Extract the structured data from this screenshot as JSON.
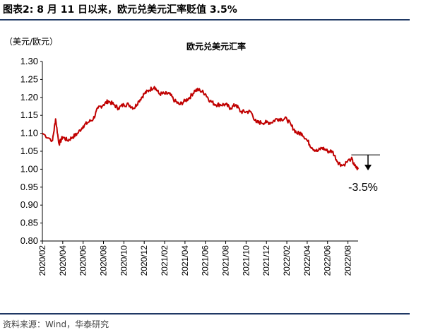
{
  "figure_title": "图表2:  8 月 11 日以来，欧元兑美元汇率贬值 3.5%",
  "source": "资料来源：Wind，华泰研究",
  "colors": {
    "series": "#c00000",
    "rule": "#1f3864",
    "axis": "#000000"
  },
  "chart_data": {
    "type": "line",
    "title": "欧元兑美元汇率",
    "unit_label": "（美元/欧元）",
    "ylim": [
      0.8,
      1.3
    ],
    "yticks": [
      "0.80",
      "0.85",
      "0.90",
      "0.95",
      "1.00",
      "1.05",
      "1.10",
      "1.15",
      "1.20",
      "1.25",
      "1.30"
    ],
    "xlim": [
      "2020-02",
      "2022-09"
    ],
    "xticks": [
      "2020/02",
      "2020/04",
      "2020/06",
      "2020/08",
      "2020/10",
      "2020/12",
      "2021/02",
      "2021/04",
      "2021/06",
      "2021/08",
      "2021/10",
      "2021/12",
      "2022/02",
      "2022/04",
      "2022/06",
      "2022/08"
    ],
    "series": [
      {
        "x": [
          "2020-02",
          "2020-03",
          "2020-03-10",
          "2020-03-20",
          "2020-04",
          "2020-04-15",
          "2020-05",
          "2020-05-15",
          "2020-06",
          "2020-06-15",
          "2020-07",
          "2020-07-15",
          "2020-08",
          "2020-08-15",
          "2020-09",
          "2020-09-15",
          "2020-10",
          "2020-10-15",
          "2020-11",
          "2020-11-15",
          "2020-12",
          "2020-12-15",
          "2021-01",
          "2021-01-15",
          "2021-02",
          "2021-02-15",
          "2021-03",
          "2021-03-15",
          "2021-04",
          "2021-04-15",
          "2021-05",
          "2021-05-15",
          "2021-06",
          "2021-06-15",
          "2021-07",
          "2021-07-15",
          "2021-08",
          "2021-08-15",
          "2021-09",
          "2021-09-15",
          "2021-10",
          "2021-10-15",
          "2021-11",
          "2021-11-15",
          "2021-12",
          "2021-12-15",
          "2022-01",
          "2022-01-15",
          "2022-02",
          "2022-02-15",
          "2022-03",
          "2022-03-15",
          "2022-04",
          "2022-04-15",
          "2022-05",
          "2022-05-15",
          "2022-06",
          "2022-06-15",
          "2022-07",
          "2022-07-15",
          "2022-08-11",
          "2022-08-20",
          "2022-08-31"
        ],
        "values": [
          1.1,
          1.08,
          1.14,
          1.07,
          1.09,
          1.08,
          1.09,
          1.1,
          1.12,
          1.13,
          1.14,
          1.17,
          1.18,
          1.19,
          1.18,
          1.17,
          1.18,
          1.18,
          1.17,
          1.19,
          1.21,
          1.22,
          1.23,
          1.21,
          1.21,
          1.21,
          1.19,
          1.18,
          1.19,
          1.2,
          1.22,
          1.22,
          1.21,
          1.19,
          1.18,
          1.18,
          1.18,
          1.17,
          1.18,
          1.16,
          1.16,
          1.16,
          1.13,
          1.13,
          1.13,
          1.13,
          1.14,
          1.14,
          1.14,
          1.12,
          1.1,
          1.1,
          1.08,
          1.06,
          1.05,
          1.06,
          1.05,
          1.05,
          1.02,
          1.01,
          1.03,
          1.01,
          1.0
        ]
      }
    ],
    "annotation": {
      "label": "-3.5%",
      "from_date": "2022-08-11",
      "level": 1.04
    }
  }
}
